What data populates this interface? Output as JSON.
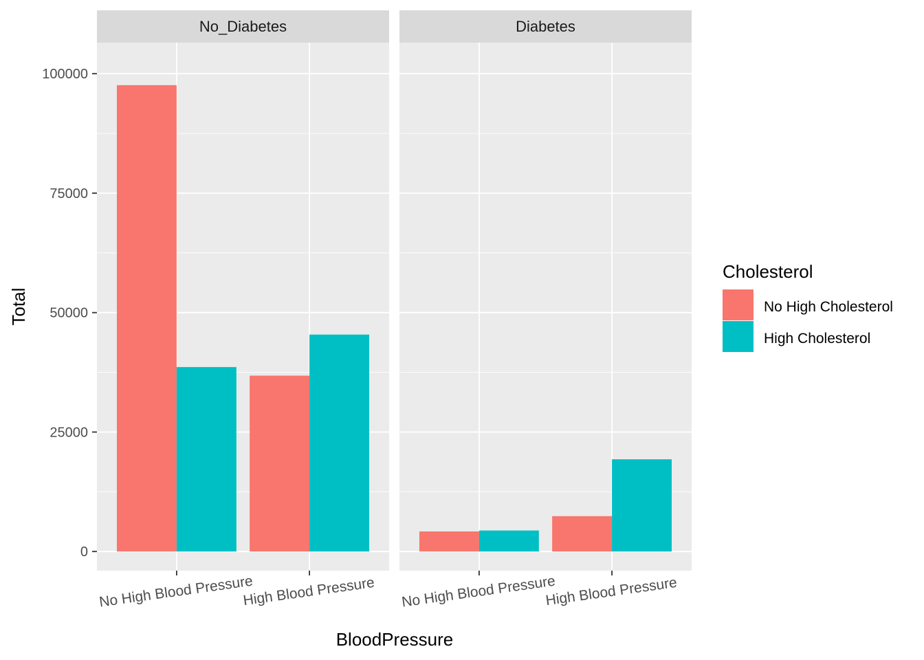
{
  "chart_data": {
    "type": "bar",
    "xlabel": "BloodPressure",
    "ylabel": "Total",
    "ylim": [
      -4000,
      106500
    ],
    "yticks": [
      0,
      25000,
      50000,
      75000,
      100000
    ],
    "yticks_labels": [
      "0",
      "25000",
      "50000",
      "75000",
      "100000"
    ],
    "categories": [
      "No High Blood Pressure",
      "High Blood Pressure"
    ],
    "legend": {
      "title": "Cholesterol",
      "position": "right"
    },
    "series_colors": [
      "#F8766D",
      "#00BFC4"
    ],
    "panels": [
      {
        "facet": "No_Diabetes",
        "series": [
          {
            "name": "No High Cholesterol",
            "values": [
              97600,
              36800
            ]
          },
          {
            "name": "High Cholesterol",
            "values": [
              38600,
              45400
            ]
          }
        ]
      },
      {
        "facet": "Diabetes",
        "series": [
          {
            "name": "No High Cholesterol",
            "values": [
              4200,
              7400
            ]
          },
          {
            "name": "High Cholesterol",
            "values": [
              4400,
              19300
            ]
          }
        ]
      }
    ],
    "grid": true
  }
}
